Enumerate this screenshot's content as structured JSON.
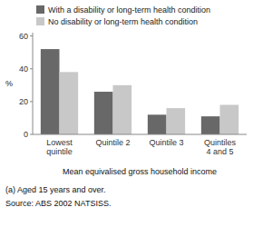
{
  "chart_data": {
    "type": "bar",
    "categories": [
      "Lowest\nquintile",
      "Quintile 2",
      "Quintile 3",
      "Quintiles\n4 and 5"
    ],
    "series": [
      {
        "name": "With a disability or long-term health condition",
        "color": "#686868",
        "values": [
          52,
          26,
          12,
          11
        ]
      },
      {
        "name": "No disability or long-term health condition",
        "color": "#c8c8c8",
        "values": [
          38,
          30,
          16,
          18
        ]
      }
    ],
    "ylabel": "%",
    "xlabel": "Mean equivalised gross household income",
    "ylim": [
      0,
      62
    ],
    "yticks": [
      0,
      20,
      40,
      60
    ],
    "grid": false,
    "legend": "top-left",
    "annotations": [
      "(a) Aged 15 years and over.",
      "Source: ABS 2002 NATSISS."
    ]
  }
}
